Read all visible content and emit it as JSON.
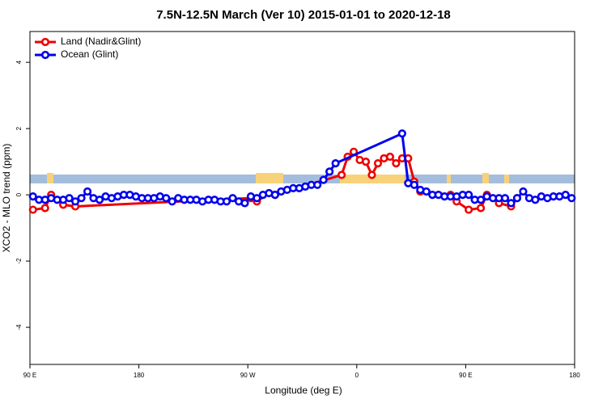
{
  "chart_data": {
    "type": "line",
    "title": "7.5N-12.5N March (Ver 10)   2015-01-01 to 2020-12-18",
    "x_label": "Longitude (deg E)",
    "y_label": "XCO2 - MLO trend (ppm)",
    "xlim": [
      90,
      540
    ],
    "ylim": [
      -5.12,
      4.93
    ],
    "xticks": [
      {
        "value": 90,
        "label": "90 E"
      },
      180,
      {
        "value": 270,
        "label": "90 W"
      },
      {
        "value": 360,
        "label": "0"
      },
      {
        "value": 450,
        "label": "90 E"
      },
      {
        "value": 540,
        "label": "180"
      }
    ],
    "yticks": [
      -4,
      -2,
      0,
      2,
      4
    ],
    "legend": "topleft",
    "series": [
      {
        "name": "Land (Nadir&Glint)",
        "color": "#ee0000",
        "x": [
          92.5,
          102.5,
          107.5,
          117.5,
          127.5,
          272.5,
          277.5,
          287.5,
          292.5,
          347.5,
          352.5,
          357.5,
          362.5,
          367.5,
          372.5,
          377.5,
          382.5,
          387.5,
          392.5,
          397.5,
          402.5,
          407.5,
          412.5,
          437.5,
          442.5,
          452.5,
          462.5,
          467.5,
          477.5,
          487.5,
          492.5
        ],
        "values": [
          -0.45,
          -0.4,
          0,
          -0.3,
          -0.35,
          -0.1,
          -0.2,
          0.05,
          0,
          0.6,
          1.15,
          1.3,
          1.05,
          1.0,
          0.6,
          0.95,
          1.1,
          1.15,
          0.95,
          1.1,
          1.1,
          0.4,
          0.1,
          0,
          -0.2,
          -0.45,
          -0.4,
          0,
          -0.25,
          -0.35,
          -0.1
        ]
      },
      {
        "name": "Ocean (Glint)",
        "color": "#0000ee",
        "x": [
          92.5,
          97.5,
          102.5,
          107.5,
          112.5,
          117.5,
          122.5,
          127.5,
          132.5,
          137.5,
          142.5,
          147.5,
          152.5,
          157.5,
          162.5,
          167.5,
          172.5,
          177.5,
          182.5,
          187.5,
          192.5,
          197.5,
          202.5,
          207.5,
          212.5,
          217.5,
          222.5,
          227.5,
          232.5,
          237.5,
          242.5,
          247.5,
          252.5,
          257.5,
          262.5,
          267.5,
          272.5,
          277.5,
          282.5,
          287.5,
          292.5,
          297.5,
          302.5,
          307.5,
          312.5,
          317.5,
          322.5,
          327.5,
          332.5,
          337.5,
          342.5,
          397.5,
          402.5,
          407.5,
          412.5,
          417.5,
          422.5,
          427.5,
          432.5,
          437.5,
          442.5,
          447.5,
          452.5,
          457.5,
          462.5,
          467.5,
          472.5,
          477.5,
          482.5,
          487.5,
          492.5,
          497.5,
          502.5,
          507.5,
          512.5,
          517.5,
          522.5,
          527.5,
          532.5,
          537.5
        ],
        "values": [
          -0.05,
          -0.15,
          -0.15,
          -0.1,
          -0.15,
          -0.15,
          -0.1,
          -0.2,
          -0.1,
          0.1,
          -0.1,
          -0.15,
          -0.05,
          -0.1,
          -0.05,
          0,
          0,
          -0.05,
          -0.1,
          -0.1,
          -0.1,
          -0.05,
          -0.1,
          -0.2,
          -0.1,
          -0.15,
          -0.15,
          -0.15,
          -0.2,
          -0.15,
          -0.15,
          -0.2,
          -0.2,
          -0.1,
          -0.2,
          -0.25,
          -0.05,
          -0.1,
          0,
          0.05,
          0,
          0.1,
          0.15,
          0.2,
          0.2,
          0.25,
          0.3,
          0.3,
          0.45,
          0.7,
          0.95,
          1.85,
          0.35,
          0.3,
          0.15,
          0.1,
          0,
          0,
          -0.05,
          -0.05,
          -0.05,
          0,
          0,
          -0.15,
          -0.15,
          -0.05,
          -0.1,
          -0.1,
          -0.1,
          -0.25,
          -0.1,
          0.1,
          -0.1,
          -0.15,
          -0.05,
          -0.1,
          -0.05,
          -0.05,
          0,
          -0.1
        ]
      }
    ]
  }
}
